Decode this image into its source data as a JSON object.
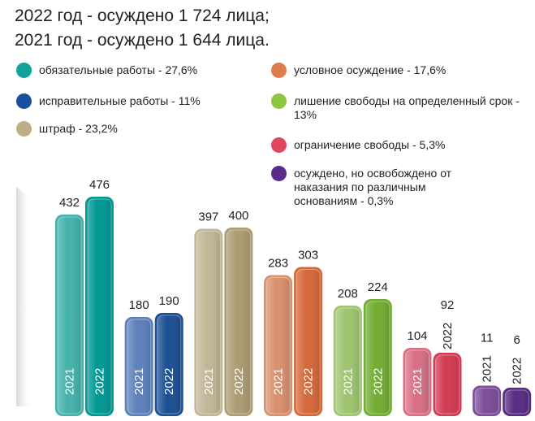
{
  "chart_data": {
    "type": "bar",
    "title_lines": [
      "2022 год - осуждено 1 724 лица;",
      "2021 год - осуждено 1 644 лица."
    ],
    "categories": [
      "обязательные работы - 27,6%",
      "исправительные работы - 11%",
      "штраф - 23,2%",
      "условное осуждение - 17,6%",
      "лишение свободы на определенный срок - 13%",
      "ограничение свободы - 5,3%",
      "осуждено, но освобождено от наказания по различным основаниям - 0,3%"
    ],
    "legend_colors": [
      "#13a19c",
      "#1a509b",
      "#bcae85",
      "#e07b4f",
      "#8dc63f",
      "#e2465f",
      "#5b2a8b"
    ],
    "series": [
      {
        "name": "2021",
        "colors": [
          "#46b1ac",
          "#5d80bb",
          "#c2b696",
          "#d9906d",
          "#9fc56f",
          "#d86f84",
          "#7d4d9b"
        ],
        "values": [
          432,
          180,
          397,
          283,
          208,
          104,
          11
        ]
      },
      {
        "name": "2022",
        "colors": [
          "#009893",
          "#1b4f93",
          "#ab9d72",
          "#d4683a",
          "#72ac33",
          "#d33b53",
          "#582b82"
        ],
        "values": [
          476,
          190,
          400,
          303,
          224,
          92,
          6
        ]
      }
    ]
  }
}
